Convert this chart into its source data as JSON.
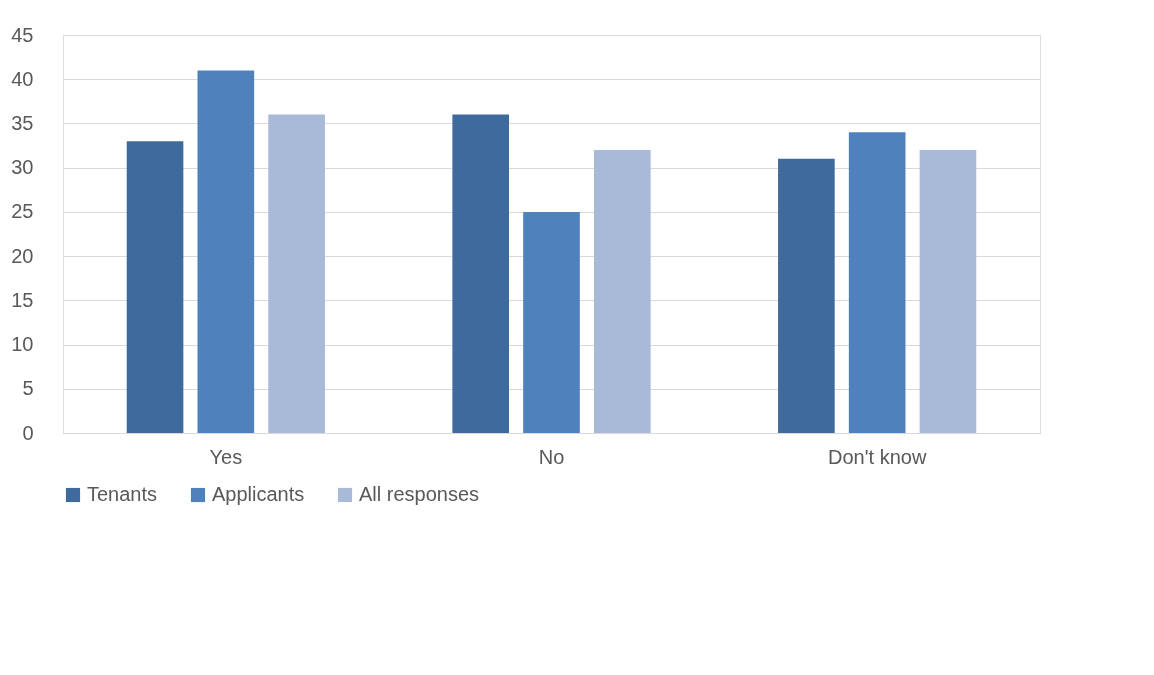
{
  "chart_data": {
    "type": "bar",
    "categories": [
      "Yes",
      "No",
      "Don't know"
    ],
    "series": [
      {
        "name": "Tenants",
        "color": "#3f6a9c",
        "values": [
          33,
          36,
          31
        ]
      },
      {
        "name": "Applicants",
        "color": "#4f81bd",
        "values": [
          41,
          25,
          34
        ]
      },
      {
        "name": "All responses",
        "color": "#a9b9d8",
        "values": [
          36,
          32,
          32
        ]
      }
    ],
    "ylim": [
      0,
      45
    ],
    "yticks": [
      0,
      5,
      10,
      15,
      20,
      25,
      30,
      35,
      40,
      45
    ],
    "grid": "y",
    "legend": "bottom"
  }
}
